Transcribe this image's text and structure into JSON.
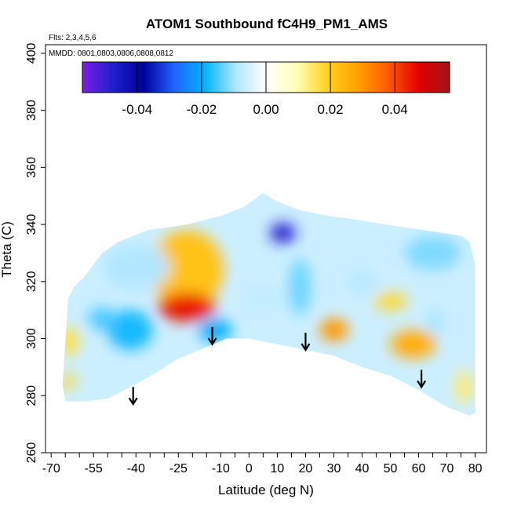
{
  "chart_data": {
    "type": "heatmap",
    "title": "ATOM1 Southbound fC4H9_PM1_AMS",
    "flights_note": "Flts: 2,3,4,5,6",
    "dates_note": "MMDD: 0801,0803,0806,0808,0812",
    "xlabel": "Latitude (deg N)",
    "ylabel": "Theta (C)",
    "xlim": [
      -72,
      84
    ],
    "ylim": [
      260,
      403
    ],
    "x_tick_labels": [
      -70,
      -55,
      -40,
      -25,
      -10,
      0,
      10,
      20,
      30,
      40,
      50,
      60,
      70,
      80
    ],
    "x_minor_ticks": [
      -70,
      -65,
      -60,
      -55,
      -50,
      -45,
      -40,
      -35,
      -30,
      -25,
      -20,
      -15,
      -10,
      -5,
      0,
      5,
      10,
      15,
      20,
      25,
      30,
      35,
      40,
      45,
      50,
      55,
      60,
      65,
      70,
      75,
      80
    ],
    "y_ticks": [
      260,
      280,
      300,
      320,
      340,
      360,
      380,
      400
    ],
    "colorbar": {
      "range": [
        -0.057,
        0.057
      ],
      "tick_values": [
        -0.04,
        -0.02,
        0.0,
        0.02,
        0.04
      ],
      "tick_labels": [
        "-0.04",
        "-0.02",
        "0.00",
        "0.02",
        "0.04"
      ],
      "colors": [
        "#7a1fe6",
        "#1f1fcc",
        "#00009e",
        "#1e64ff",
        "#00b4ff",
        "#aee6ff",
        "#ffffff",
        "#ffffb4",
        "#ffd21e",
        "#ffa000",
        "#ff5a00",
        "#e10000",
        "#a01414"
      ]
    },
    "coverage_polygon": [
      [
        -65,
        278
      ],
      [
        -66,
        284
      ],
      [
        -65,
        298
      ],
      [
        -64,
        314
      ],
      [
        -62,
        318
      ],
      [
        -58,
        322
      ],
      [
        -52,
        330
      ],
      [
        -46,
        334
      ],
      [
        -36,
        338
      ],
      [
        -22,
        340
      ],
      [
        -10,
        343
      ],
      [
        -2,
        346
      ],
      [
        5,
        351
      ],
      [
        10,
        348
      ],
      [
        18,
        345
      ],
      [
        28,
        343
      ],
      [
        36,
        342
      ],
      [
        48,
        340
      ],
      [
        62,
        338
      ],
      [
        75,
        336
      ],
      [
        78,
        334
      ],
      [
        80,
        326
      ],
      [
        80,
        310
      ],
      [
        80,
        296
      ],
      [
        80,
        288
      ],
      [
        80,
        274
      ],
      [
        78,
        273
      ],
      [
        70,
        276
      ],
      [
        60,
        282
      ],
      [
        50,
        287
      ],
      [
        40,
        290
      ],
      [
        30,
        294
      ],
      [
        20,
        296
      ],
      [
        10,
        298
      ],
      [
        0,
        300
      ],
      [
        -8,
        300
      ],
      [
        -15,
        297
      ],
      [
        -25,
        293
      ],
      [
        -33,
        288
      ],
      [
        -42,
        283
      ],
      [
        -50,
        279
      ],
      [
        -58,
        278
      ]
    ],
    "patches": [
      {
        "lat": -22,
        "theta": 324,
        "rx": 13,
        "ry": 14,
        "value": 0.022
      },
      {
        "lat": -22,
        "theta": 311,
        "rx": 10,
        "ry": 5,
        "value": 0.045
      },
      {
        "lat": 12,
        "theta": 337,
        "rx": 4.5,
        "ry": 3.5,
        "value": -0.048
      },
      {
        "lat": 30,
        "theta": 303,
        "rx": 5,
        "ry": 4,
        "value": 0.03
      },
      {
        "lat": 58,
        "theta": 298,
        "rx": 8,
        "ry": 5,
        "value": 0.026
      },
      {
        "lat": 50,
        "theta": 313,
        "rx": 6,
        "ry": 3,
        "value": 0.018
      },
      {
        "lat": -64,
        "theta": 299,
        "rx": 4,
        "ry": 5,
        "value": 0.016
      },
      {
        "lat": -64,
        "theta": 285,
        "rx": 2.5,
        "ry": 3,
        "value": 0.018
      },
      {
        "lat": -12,
        "theta": 303,
        "rx": 6,
        "ry": 4,
        "value": -0.02
      },
      {
        "lat": -42,
        "theta": 303,
        "rx": 8,
        "ry": 7,
        "value": -0.018
      },
      {
        "lat": -52,
        "theta": 307,
        "rx": 5,
        "ry": 4,
        "value": -0.015
      },
      {
        "lat": 18,
        "theta": 318,
        "rx": 4,
        "ry": 10,
        "value": -0.013
      },
      {
        "lat": 40,
        "theta": 320,
        "rx": 6,
        "ry": 5,
        "value": -0.008
      },
      {
        "lat": 66,
        "theta": 306,
        "rx": 3,
        "ry": 4,
        "value": -0.01
      },
      {
        "lat": 76,
        "theta": 283,
        "rx": 3,
        "ry": 6,
        "value": 0.014
      },
      {
        "lat": 65,
        "theta": 330,
        "rx": 10,
        "ry": 6,
        "value": -0.012
      },
      {
        "lat": -40,
        "theta": 325,
        "rx": 12,
        "ry": 8,
        "value": -0.009
      },
      {
        "lat": 5,
        "theta": 314,
        "rx": 8,
        "ry": 6,
        "value": -0.007
      }
    ],
    "arrow_latitudes": [
      -41,
      -13,
      20,
      61
    ],
    "arrow_thetas": [
      277,
      298,
      296,
      283
    ]
  }
}
